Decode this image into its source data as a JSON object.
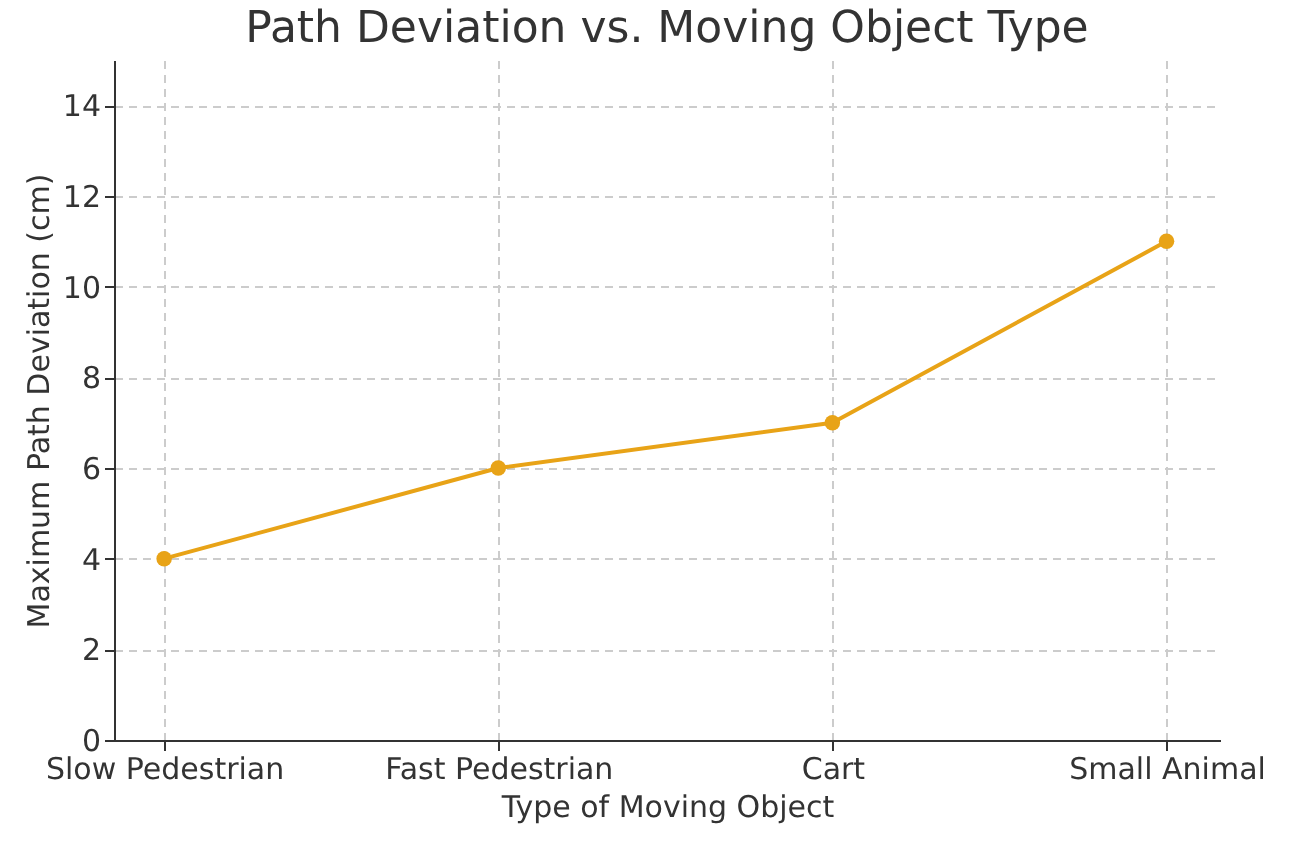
{
  "chart_data": {
    "type": "line",
    "title": "Path Deviation vs. Moving Object Type",
    "xlabel": "Type of Moving Object",
    "ylabel": "Maximum Path Deviation (cm)",
    "categories": [
      "Slow Pedestrian",
      "Fast Pedestrian",
      "Cart",
      "Small Animal"
    ],
    "series": [
      {
        "color": "#e8a317",
        "values": [
          4,
          6,
          7,
          11
        ]
      }
    ],
    "ylim": [
      0,
      15
    ],
    "yticks": [
      0,
      2,
      4,
      6,
      8,
      10,
      12,
      14
    ],
    "grid": true,
    "marker": "circle",
    "line_style": "solid"
  }
}
